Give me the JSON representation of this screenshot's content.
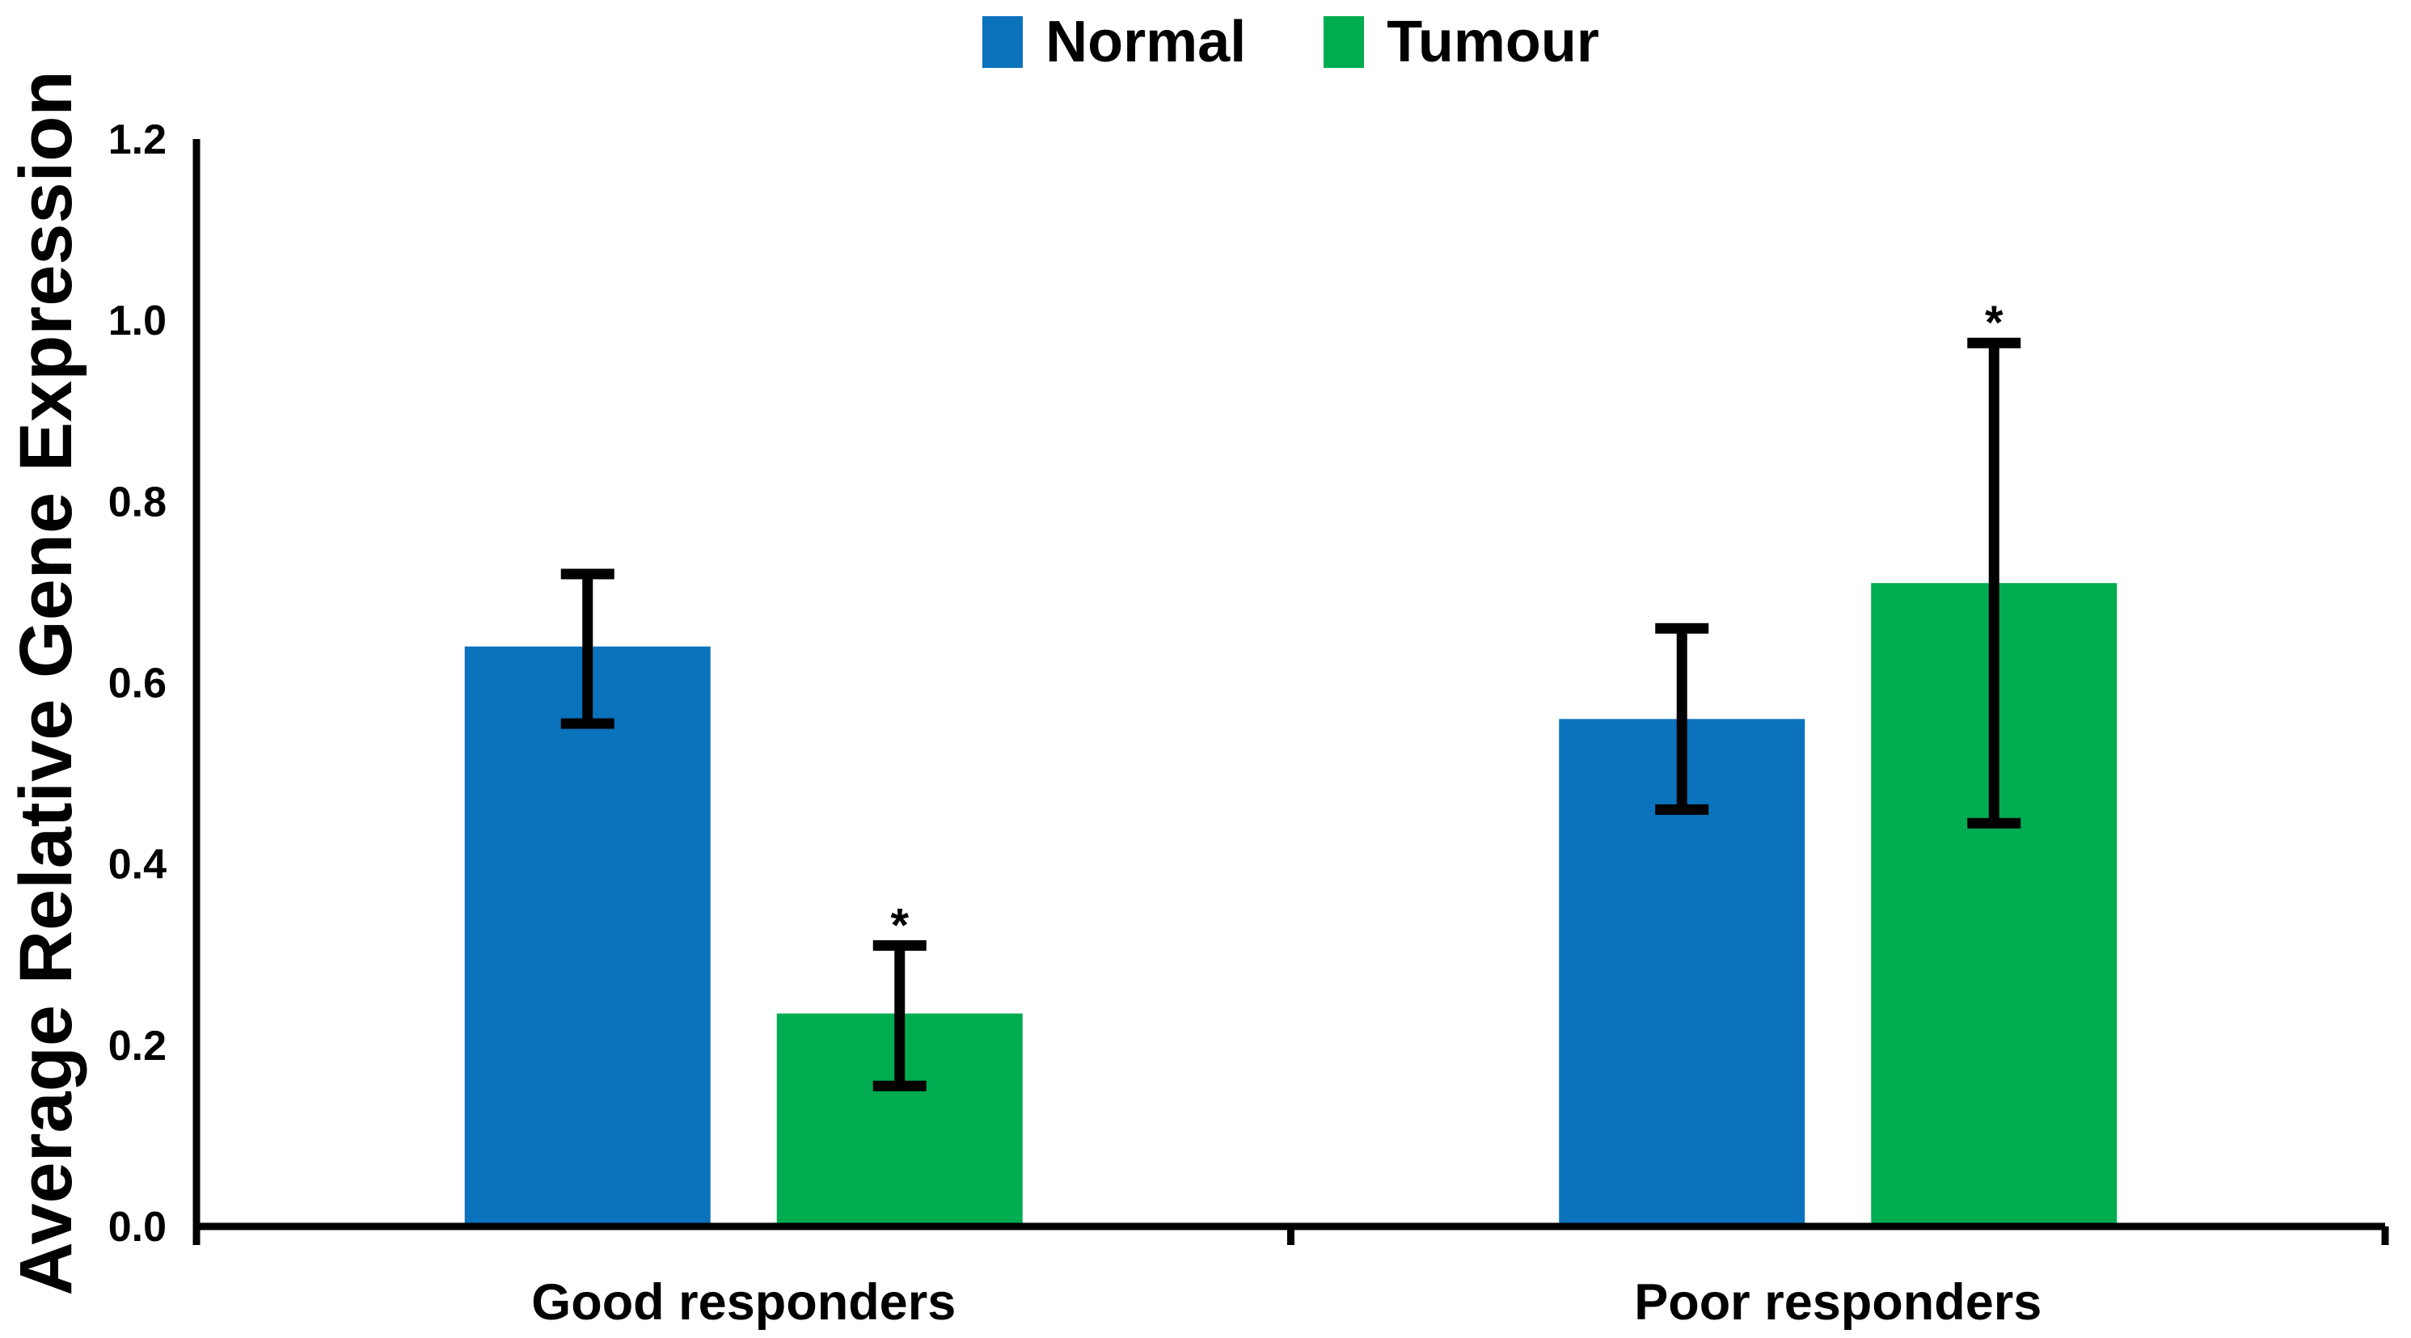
{
  "chart_data": {
    "type": "bar",
    "title": "",
    "ylabel": "Average Relative Gene Expression",
    "xlabel": "",
    "categories": [
      "Good responders",
      "Poor responders"
    ],
    "series": [
      {
        "name": "Normal",
        "color": "#0B72BC",
        "values": [
          0.64,
          0.56
        ],
        "error_low": [
          0.555,
          0.46
        ],
        "error_high": [
          0.72,
          0.66
        ],
        "annotations": [
          "",
          ""
        ]
      },
      {
        "name": "Tumour",
        "color": "#00AC50",
        "values": [
          0.235,
          0.71
        ],
        "error_low": [
          0.155,
          0.445
        ],
        "error_high": [
          0.31,
          0.975
        ],
        "annotations": [
          "*",
          "*"
        ]
      }
    ],
    "ylim": [
      0,
      1.2
    ],
    "yticks": [
      0,
      0.2,
      0.4,
      0.6,
      0.8,
      1.0,
      1.2
    ],
    "ytick_labels": [
      "0.0",
      "0.2",
      "0.4",
      "0.6",
      "0.8",
      "1.0",
      "1.2"
    ],
    "grid": false,
    "legend_position": "top-center",
    "error_bars": true,
    "axis_color": "#000000",
    "text_color": "#000000",
    "background_color": "#FFFFFF"
  }
}
